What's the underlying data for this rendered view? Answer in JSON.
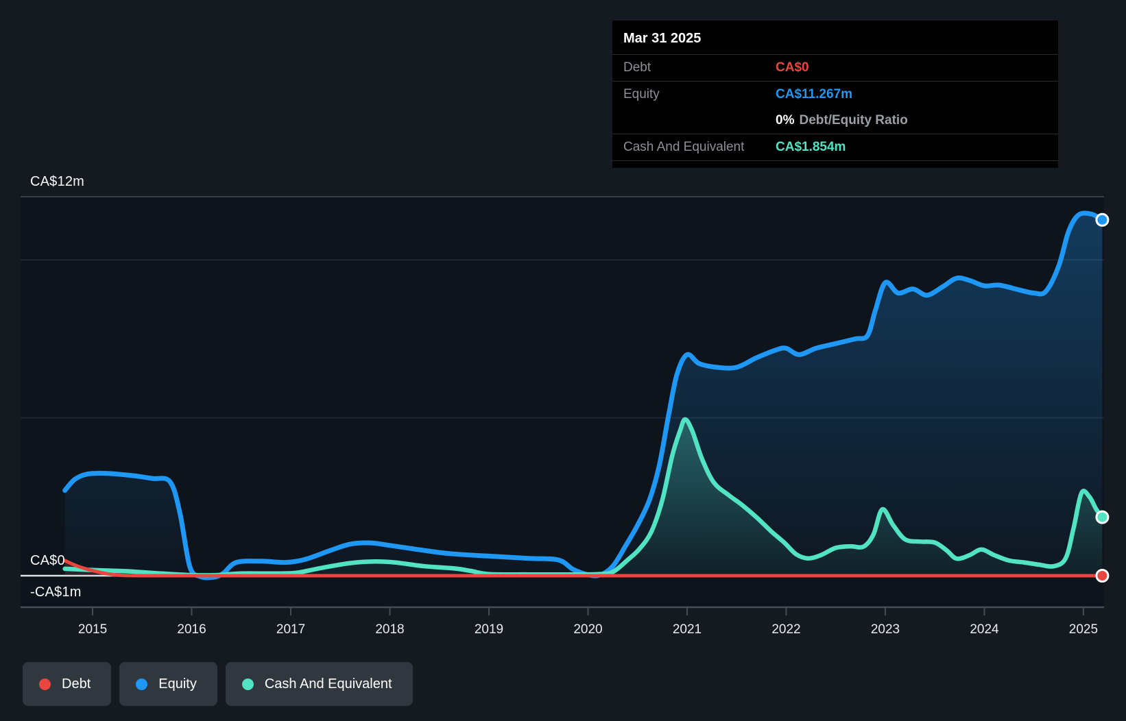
{
  "colors": {
    "debt": "#e8463e",
    "equity": "#1f97f4",
    "cash": "#52e2c4",
    "page_bg": "#151a21",
    "plot_bg": "#0e141c",
    "grid_major": "#3c4148",
    "grid_minor": "#252b33",
    "zero_line": "#dfe2e5",
    "axis_line": "#454c54",
    "tooltip_bg": "#000000",
    "chip_bg": "#31373e"
  },
  "tooltip": {
    "date": "Mar 31 2025",
    "rows": [
      {
        "label": "Debt",
        "value": "CA$0"
      },
      {
        "label": "Equity",
        "value": "CA$11.267m"
      },
      {
        "label": "Cash And Equivalent",
        "value": "CA$1.854m"
      }
    ],
    "ratio": {
      "strong": "0%",
      "rest": "Debt/Equity Ratio"
    }
  },
  "legend": {
    "items": [
      {
        "label": "Debt"
      },
      {
        "label": "Equity"
      },
      {
        "label": "Cash And Equivalent"
      }
    ]
  },
  "chart_data": {
    "type": "area",
    "title": "Debt to Equity history chart",
    "y_unit": "CA$ millions",
    "x_unit": "year",
    "xlim": [
      2014.273,
      2025.208
    ],
    "ylim": [
      -1,
      12
    ],
    "x_axis": {
      "ticks": [
        2015,
        2016,
        2017,
        2018,
        2019,
        2020,
        2021,
        2022,
        2023,
        2024,
        2025
      ],
      "labels": [
        "2015",
        "2016",
        "2017",
        "2018",
        "2019",
        "2020",
        "2021",
        "2022",
        "2023",
        "2024",
        "2025"
      ]
    },
    "y_axis": {
      "labels": [
        {
          "text": "CA$12m",
          "value": 12
        },
        {
          "text": "CA$0",
          "value": 0
        },
        {
          "text": "-CA$1m",
          "value": -1
        }
      ],
      "minor_gridlines": [
        10,
        5
      ]
    },
    "series": [
      {
        "name": "Equity",
        "color": "#1f97f4",
        "width": 7,
        "fill_opacity": [
          0.3,
          0.02
        ],
        "end_marker": true,
        "last_value_label": "CA$11.267m",
        "points": [
          [
            2014.72,
            2.7
          ],
          [
            2014.82,
            3.05
          ],
          [
            2014.95,
            3.22
          ],
          [
            2015.15,
            3.24
          ],
          [
            2015.4,
            3.17
          ],
          [
            2015.6,
            3.08
          ],
          [
            2015.78,
            2.98
          ],
          [
            2015.88,
            2.0
          ],
          [
            2015.98,
            0.3
          ],
          [
            2016.08,
            -0.02
          ],
          [
            2016.22,
            -0.05
          ],
          [
            2016.32,
            0.08
          ],
          [
            2016.45,
            0.42
          ],
          [
            2016.7,
            0.46
          ],
          [
            2016.95,
            0.42
          ],
          [
            2017.15,
            0.52
          ],
          [
            2017.4,
            0.8
          ],
          [
            2017.6,
            1.0
          ],
          [
            2017.8,
            1.04
          ],
          [
            2018.0,
            0.96
          ],
          [
            2018.3,
            0.82
          ],
          [
            2018.6,
            0.7
          ],
          [
            2019.0,
            0.62
          ],
          [
            2019.4,
            0.55
          ],
          [
            2019.7,
            0.5
          ],
          [
            2019.85,
            0.2
          ],
          [
            2020.0,
            0.03
          ],
          [
            2020.12,
            0.02
          ],
          [
            2020.25,
            0.3
          ],
          [
            2020.38,
            0.95
          ],
          [
            2020.5,
            1.6
          ],
          [
            2020.62,
            2.4
          ],
          [
            2020.72,
            3.5
          ],
          [
            2020.82,
            5.2
          ],
          [
            2020.9,
            6.4
          ],
          [
            2021.0,
            7.0
          ],
          [
            2021.12,
            6.72
          ],
          [
            2021.3,
            6.6
          ],
          [
            2021.5,
            6.6
          ],
          [
            2021.7,
            6.9
          ],
          [
            2021.9,
            7.15
          ],
          [
            2022.0,
            7.2
          ],
          [
            2022.13,
            7.0
          ],
          [
            2022.3,
            7.2
          ],
          [
            2022.5,
            7.35
          ],
          [
            2022.7,
            7.5
          ],
          [
            2022.82,
            7.6
          ],
          [
            2022.9,
            8.4
          ],
          [
            2023.0,
            9.28
          ],
          [
            2023.13,
            8.95
          ],
          [
            2023.28,
            9.08
          ],
          [
            2023.42,
            8.88
          ],
          [
            2023.58,
            9.15
          ],
          [
            2023.72,
            9.42
          ],
          [
            2023.85,
            9.35
          ],
          [
            2024.0,
            9.18
          ],
          [
            2024.15,
            9.2
          ],
          [
            2024.35,
            9.05
          ],
          [
            2024.5,
            8.95
          ],
          [
            2024.62,
            9.0
          ],
          [
            2024.75,
            9.8
          ],
          [
            2024.85,
            10.9
          ],
          [
            2024.95,
            11.42
          ],
          [
            2025.08,
            11.45
          ],
          [
            2025.19,
            11.267
          ]
        ]
      },
      {
        "name": "Cash And Equivalent",
        "color": "#52e2c4",
        "width": 6.5,
        "fill_opacity": [
          0.32,
          0.04
        ],
        "end_marker": true,
        "last_value_label": "CA$1.854m",
        "points": [
          [
            2014.72,
            0.22
          ],
          [
            2015.0,
            0.18
          ],
          [
            2015.35,
            0.14
          ],
          [
            2015.7,
            0.07
          ],
          [
            2016.0,
            0.02
          ],
          [
            2016.25,
            0.02
          ],
          [
            2016.5,
            0.07
          ],
          [
            2016.8,
            0.07
          ],
          [
            2017.05,
            0.09
          ],
          [
            2017.3,
            0.24
          ],
          [
            2017.6,
            0.4
          ],
          [
            2017.85,
            0.45
          ],
          [
            2018.05,
            0.42
          ],
          [
            2018.35,
            0.3
          ],
          [
            2018.65,
            0.23
          ],
          [
            2018.82,
            0.15
          ],
          [
            2019.0,
            0.05
          ],
          [
            2019.4,
            0.04
          ],
          [
            2019.8,
            0.04
          ],
          [
            2020.1,
            0.05
          ],
          [
            2020.25,
            0.12
          ],
          [
            2020.4,
            0.5
          ],
          [
            2020.52,
            0.85
          ],
          [
            2020.64,
            1.4
          ],
          [
            2020.75,
            2.4
          ],
          [
            2020.85,
            3.8
          ],
          [
            2020.93,
            4.6
          ],
          [
            2020.98,
            4.95
          ],
          [
            2021.05,
            4.6
          ],
          [
            2021.15,
            3.7
          ],
          [
            2021.27,
            2.95
          ],
          [
            2021.42,
            2.55
          ],
          [
            2021.55,
            2.25
          ],
          [
            2021.7,
            1.85
          ],
          [
            2021.85,
            1.4
          ],
          [
            2021.98,
            1.05
          ],
          [
            2022.1,
            0.68
          ],
          [
            2022.22,
            0.55
          ],
          [
            2022.35,
            0.65
          ],
          [
            2022.5,
            0.88
          ],
          [
            2022.65,
            0.93
          ],
          [
            2022.78,
            0.92
          ],
          [
            2022.88,
            1.3
          ],
          [
            2022.97,
            2.1
          ],
          [
            2023.08,
            1.6
          ],
          [
            2023.2,
            1.15
          ],
          [
            2023.35,
            1.08
          ],
          [
            2023.5,
            1.05
          ],
          [
            2023.62,
            0.8
          ],
          [
            2023.72,
            0.54
          ],
          [
            2023.85,
            0.65
          ],
          [
            2023.97,
            0.83
          ],
          [
            2024.1,
            0.65
          ],
          [
            2024.25,
            0.48
          ],
          [
            2024.4,
            0.42
          ],
          [
            2024.55,
            0.35
          ],
          [
            2024.7,
            0.3
          ],
          [
            2024.82,
            0.55
          ],
          [
            2024.9,
            1.5
          ],
          [
            2024.98,
            2.62
          ],
          [
            2025.06,
            2.5
          ],
          [
            2025.13,
            2.1
          ],
          [
            2025.19,
            1.854
          ]
        ]
      },
      {
        "name": "Debt",
        "color": "#e8463e",
        "width": 5,
        "fill_opacity": [
          0.3,
          0.08
        ],
        "end_marker": true,
        "last_value_label": "CA$0",
        "points": [
          [
            2014.72,
            0.48
          ],
          [
            2014.85,
            0.3
          ],
          [
            2015.0,
            0.16
          ],
          [
            2015.15,
            0.06
          ],
          [
            2015.3,
            0.01
          ],
          [
            2015.6,
            0.0
          ],
          [
            2016.0,
            0.0
          ],
          [
            2017.0,
            0.0
          ],
          [
            2018.0,
            0.0
          ],
          [
            2019.0,
            0.0
          ],
          [
            2020.0,
            0.0
          ],
          [
            2021.0,
            0.0
          ],
          [
            2022.0,
            0.0
          ],
          [
            2023.0,
            0.0
          ],
          [
            2024.0,
            0.0
          ],
          [
            2024.6,
            0.0
          ],
          [
            2025.19,
            0.0
          ]
        ]
      }
    ]
  }
}
